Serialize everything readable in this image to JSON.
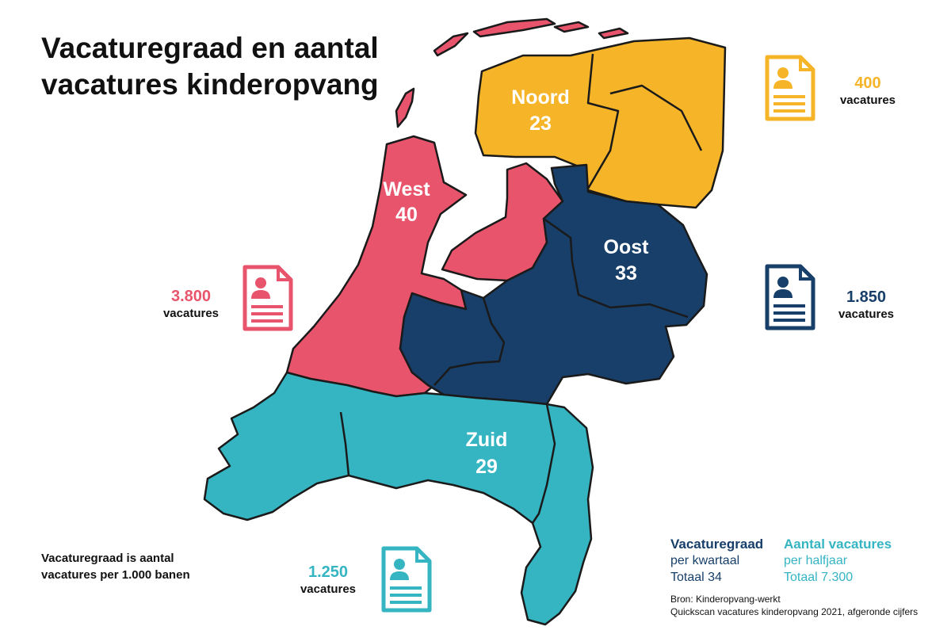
{
  "title": {
    "line1": "Vacaturegraad en aantal",
    "line2": "vacatures kinderopvang"
  },
  "colors": {
    "noord": "#f6b428",
    "west": "#e8546c",
    "oost": "#173f69",
    "zuid": "#35b5c2"
  },
  "regions": [
    {
      "id": "noord",
      "name": "Noord",
      "rate": "23",
      "vacancies": "400",
      "unit": "vacatures"
    },
    {
      "id": "west",
      "name": "West",
      "rate": "40",
      "vacancies": "3.800",
      "unit": "vacatures"
    },
    {
      "id": "oost",
      "name": "Oost",
      "rate": "33",
      "vacancies": "1.850",
      "unit": "vacatures"
    },
    {
      "id": "zuid",
      "name": "Zuid",
      "rate": "29",
      "vacancies": "1.250",
      "unit": "vacatures"
    }
  ],
  "icon": "document-person-icon",
  "note": {
    "line1": "Vacaturegraad is aantal",
    "line2": "vacatures per 1.000 banen"
  },
  "legend": {
    "rate": {
      "head": "Vacaturegraad",
      "sub": "per kwartaal",
      "total": "Totaal 34"
    },
    "count": {
      "head": "Aantal vacatures",
      "sub": "per halfjaar",
      "total": "Totaal 7.300"
    }
  },
  "source": {
    "line1": "Bron: Kinderopvang-werkt",
    "line2": "Quickscan vacatures kinderopvang 2021, afgeronde cijfers"
  }
}
